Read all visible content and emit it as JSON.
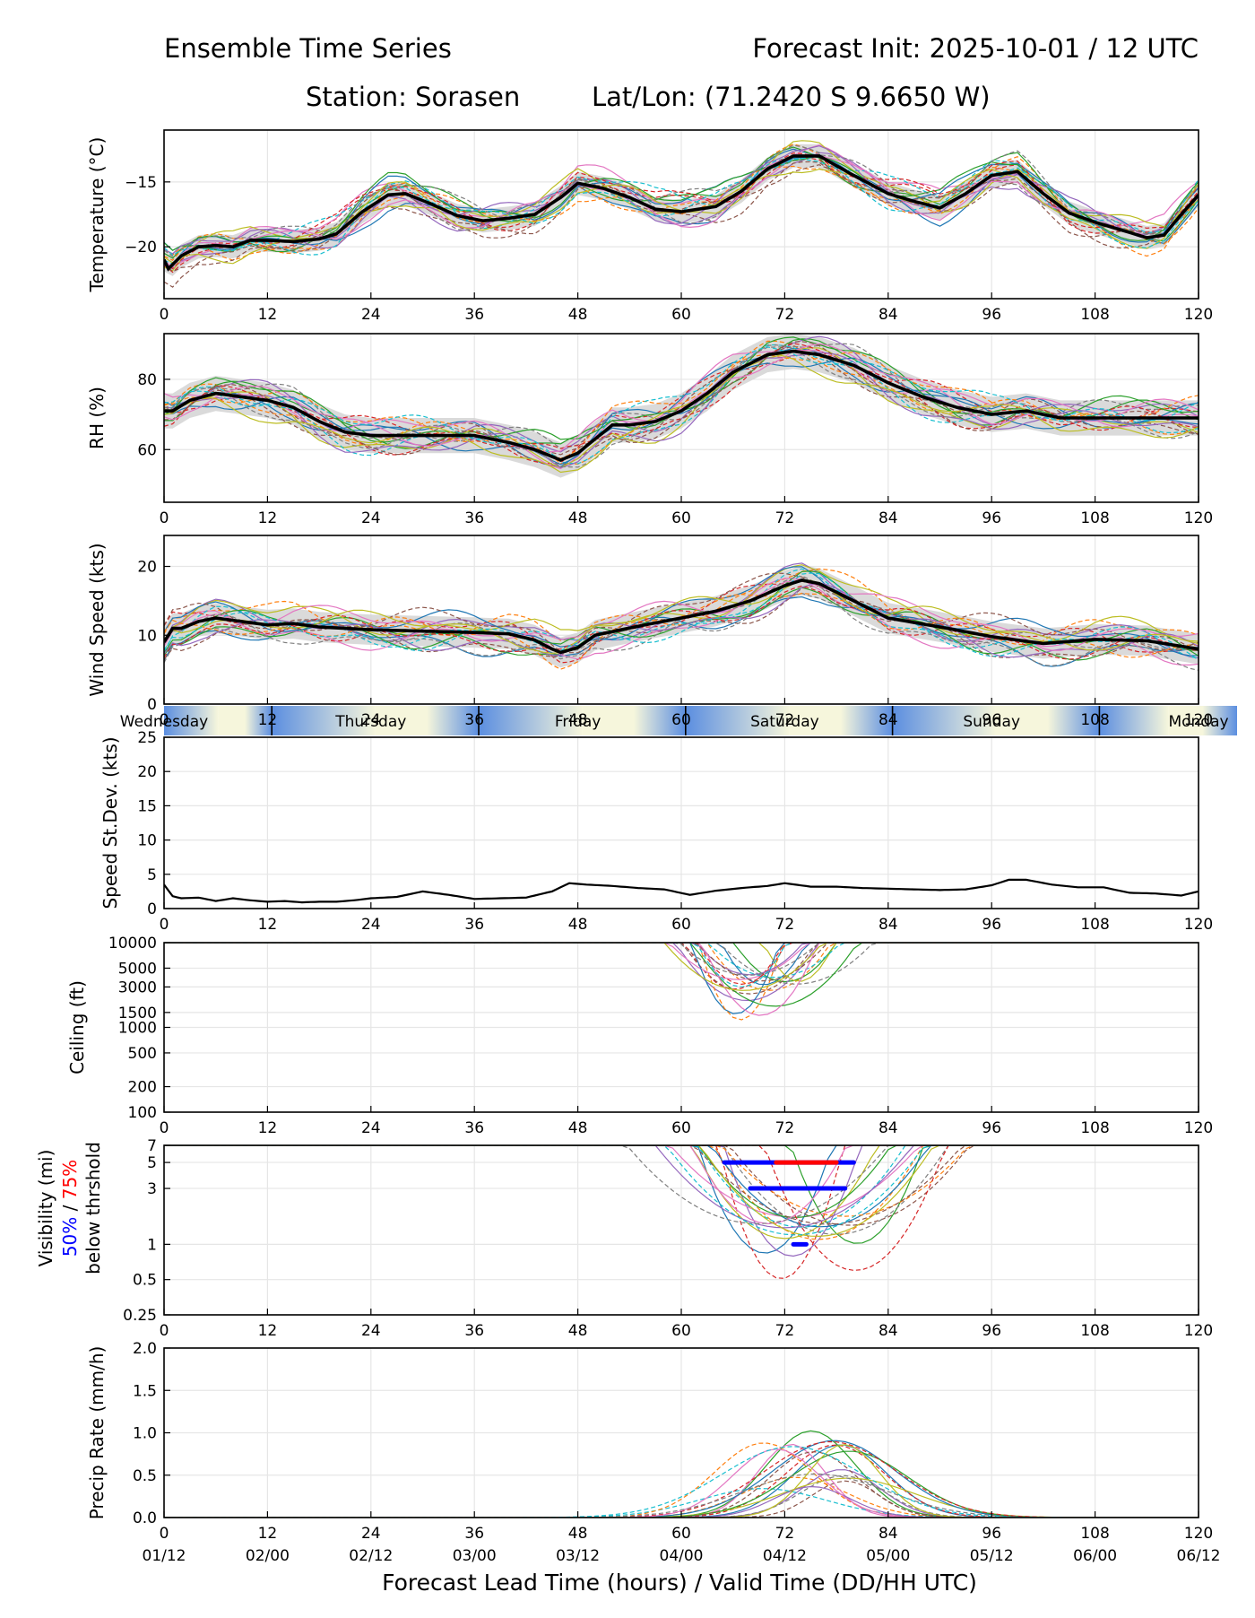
{
  "header": {
    "title_left": "Ensemble Time Series",
    "title_right": "Forecast Init: 2025-10-01 / 12 UTC",
    "station": "Station: Sorasen",
    "latlon": "Lat/Lon: (71.2420 S 9.6650 W)"
  },
  "xaxis": {
    "label": "Forecast Lead Time (hours) / Valid Time (DD/HH UTC)",
    "hours": [
      0,
      12,
      24,
      36,
      48,
      60,
      72,
      84,
      96,
      108,
      120
    ],
    "valid_times": [
      "01/12",
      "02/00",
      "02/12",
      "03/00",
      "03/12",
      "04/00",
      "04/12",
      "05/00",
      "05/12",
      "06/00",
      "06/12"
    ]
  },
  "days": {
    "labels": [
      "Wednesday",
      "Thursday",
      "Friday",
      "Saturday",
      "Sunday",
      "Monday"
    ],
    "label_hours": [
      0,
      24,
      48,
      72,
      96,
      120
    ],
    "separator_hours": [
      12.5,
      36.5,
      60.5,
      84.5,
      108.5
    ]
  },
  "legend": {
    "vis_50": "50%",
    "vis_sep": " / ",
    "vis_75": "75%",
    "vis_tail": "below thrshold"
  },
  "colors": {
    "members": [
      "#1f77b4",
      "#ff7f0e",
      "#2ca02c",
      "#d62728",
      "#9467bd",
      "#8c564b",
      "#e377c2",
      "#7f7f7f",
      "#bcbd22",
      "#17becf"
    ],
    "mean": "#000000",
    "band": "#d3d3d3",
    "vis_50": "#0000ff",
    "vis_75": "#ff0000",
    "day_gradient": [
      "#5b8ee0",
      "#f6f6dc"
    ]
  },
  "chart_data": [
    {
      "id": "temperature",
      "type": "line",
      "ylabel": "Temperature (°C)",
      "ylim": [
        -24,
        -11
      ],
      "yticks": [
        -20,
        -15
      ],
      "ytick_labels": [
        "−20",
        "−15"
      ],
      "scale": "linear",
      "mean": {
        "x": [
          0,
          0.5,
          2,
          4,
          6,
          8,
          10,
          12,
          15,
          18,
          20,
          23,
          26,
          28,
          31,
          34,
          37,
          40,
          43,
          46,
          48,
          51,
          54,
          57,
          60,
          64,
          67,
          70,
          73,
          76,
          80,
          84,
          87,
          90,
          93,
          96,
          99,
          102,
          105,
          108,
          111,
          114,
          116,
          118,
          120
        ],
        "y": [
          -21.0,
          -21.7,
          -20.7,
          -20.0,
          -19.9,
          -20.0,
          -19.5,
          -19.5,
          -19.6,
          -19.4,
          -19.0,
          -17.3,
          -16.0,
          -15.9,
          -16.7,
          -17.6,
          -18.0,
          -17.8,
          -17.5,
          -16.2,
          -15.1,
          -15.5,
          -16.2,
          -17.1,
          -17.3,
          -16.9,
          -15.7,
          -14.0,
          -13.0,
          -13.0,
          -14.5,
          -15.9,
          -16.5,
          -17.0,
          -15.9,
          -14.5,
          -14.2,
          -15.9,
          -17.4,
          -18.1,
          -18.7,
          -19.3,
          -19.1,
          -17.5,
          -16.0
        ]
      },
      "band_halfwidth": 0.9,
      "member_spread": 1.3,
      "member_count": 20
    },
    {
      "id": "rh",
      "type": "line",
      "ylabel": "RH (%)",
      "ylim": [
        45,
        93
      ],
      "yticks": [
        60,
        80
      ],
      "ytick_labels": [
        "60",
        "80"
      ],
      "scale": "linear",
      "mean": {
        "x": [
          0,
          1,
          3,
          6,
          9,
          12,
          15,
          18,
          21,
          24,
          28,
          32,
          36,
          40,
          43,
          45,
          46,
          48,
          50,
          52,
          54,
          57,
          60,
          63,
          66,
          70,
          73,
          76,
          80,
          84,
          88,
          92,
          96,
          100,
          104,
          108,
          112,
          116,
          120
        ],
        "y": [
          71,
          71,
          74,
          76,
          75,
          74,
          72,
          68,
          65,
          64,
          64,
          64,
          64,
          62,
          60,
          58,
          57,
          59,
          63,
          67,
          67,
          68,
          71,
          76,
          82,
          87,
          88,
          87,
          84,
          79,
          75,
          72,
          70,
          71,
          69,
          69,
          69,
          69,
          69
        ]
      },
      "band_halfwidth": 5,
      "member_spread": 5,
      "member_count": 20
    },
    {
      "id": "wind",
      "type": "line",
      "ylabel": "Wind Speed (kts)",
      "ylim": [
        0,
        24.5
      ],
      "yticks": [
        0,
        10,
        20
      ],
      "ytick_labels": [
        "0",
        "10",
        "20"
      ],
      "scale": "linear",
      "mean": {
        "x": [
          0,
          1,
          2,
          4,
          6,
          9,
          12,
          15,
          18,
          24,
          30,
          36,
          40,
          43,
          45,
          46,
          48,
          50,
          53,
          57,
          60,
          64,
          68,
          72,
          74,
          76,
          80,
          84,
          90,
          96,
          102,
          108,
          114,
          120
        ],
        "y": [
          9,
          11,
          11,
          12,
          12.5,
          12,
          11.5,
          11.7,
          11.2,
          10.8,
          10.6,
          10.4,
          10.2,
          9.3,
          8.0,
          7.5,
          8.2,
          10.0,
          10.8,
          11.8,
          12.5,
          13.5,
          15.0,
          17.2,
          18.0,
          17.5,
          15.0,
          12.5,
          11.2,
          9.8,
          8.8,
          9.4,
          9.2,
          8.0
        ]
      },
      "band_halfwidth": 2.2,
      "member_spread": 2.5,
      "member_count": 20
    },
    {
      "id": "speed_sd",
      "type": "line",
      "ylabel": "Speed St.Dev. (kts)",
      "ylim": [
        0,
        25
      ],
      "yticks": [
        0,
        5,
        10,
        15,
        20,
        25
      ],
      "ytick_labels": [
        "0",
        "5",
        "10",
        "15",
        "20",
        "25"
      ],
      "scale": "linear",
      "mean": {
        "x": [
          0,
          1,
          2,
          4,
          6,
          8,
          10,
          12,
          14,
          16,
          18,
          20,
          22,
          24,
          27,
          30,
          33,
          36,
          39,
          42,
          45,
          47,
          49,
          52,
          55,
          58,
          61,
          64,
          67,
          70,
          72,
          75,
          78,
          81,
          84,
          87,
          90,
          93,
          96,
          98,
          100,
          103,
          106,
          109,
          112,
          115,
          118,
          120
        ],
        "y": [
          3.5,
          1.8,
          1.5,
          1.6,
          1.1,
          1.5,
          1.2,
          1.0,
          1.1,
          0.9,
          1.0,
          1.0,
          1.2,
          1.5,
          1.7,
          2.5,
          2.0,
          1.4,
          1.5,
          1.6,
          2.5,
          3.7,
          3.5,
          3.3,
          3.0,
          2.8,
          2.0,
          2.6,
          3.0,
          3.3,
          3.7,
          3.2,
          3.2,
          3.0,
          2.9,
          2.8,
          2.7,
          2.8,
          3.4,
          4.2,
          4.2,
          3.5,
          3.1,
          3.1,
          2.3,
          2.2,
          1.9,
          2.5
        ]
      },
      "band_halfwidth": 0,
      "member_spread": 0,
      "member_count": 0
    },
    {
      "id": "ceiling",
      "type": "line",
      "ylabel": "Ceiling (ft)",
      "ylim": [
        100,
        10000
      ],
      "yticks": [
        100,
        200,
        500,
        1000,
        1500,
        3000,
        5000,
        10000
      ],
      "ytick_labels": [
        "100",
        "200",
        "500",
        "1000",
        "1500",
        "3000",
        "5000",
        "10000"
      ],
      "scale": "log",
      "dip_centre": 70,
      "dip_halfwidth": 8,
      "dip_min": 1200,
      "member_count": 20
    },
    {
      "id": "visibility",
      "type": "line",
      "ylabel": "Visibility (mi)",
      "ylim": [
        0.25,
        7
      ],
      "yticks": [
        0.25,
        0.5,
        1,
        3,
        5,
        7
      ],
      "ytick_labels": [
        "0.25",
        "0.5",
        "1",
        "3",
        "5",
        "7"
      ],
      "scale": "log",
      "dip_centre": 74,
      "dip_halfwidth": 13,
      "dip_min": 0.5,
      "member_count": 20,
      "threshold_bars": [
        {
          "value": 5,
          "start": 65,
          "end": 80,
          "color_key": "vis_50"
        },
        {
          "value": 5,
          "start": 71,
          "end": 78,
          "color_key": "vis_75"
        },
        {
          "value": 3,
          "start": 68,
          "end": 79,
          "color_key": "vis_50"
        },
        {
          "value": 1,
          "start": 73,
          "end": 74.5,
          "color_key": "vis_50"
        }
      ]
    },
    {
      "id": "precip",
      "type": "line",
      "ylabel": "Precip Rate (mm/h)",
      "ylim": [
        0,
        2.0
      ],
      "yticks": [
        0.0,
        0.5,
        1.0,
        1.5,
        2.0
      ],
      "ytick_labels": [
        "0.0",
        "0.5",
        "1.0",
        "1.5",
        "2.0"
      ],
      "scale": "linear",
      "hump_centre": 74,
      "hump_halfwidth": 11,
      "hump_peak": 1.1,
      "member_count": 20
    }
  ]
}
